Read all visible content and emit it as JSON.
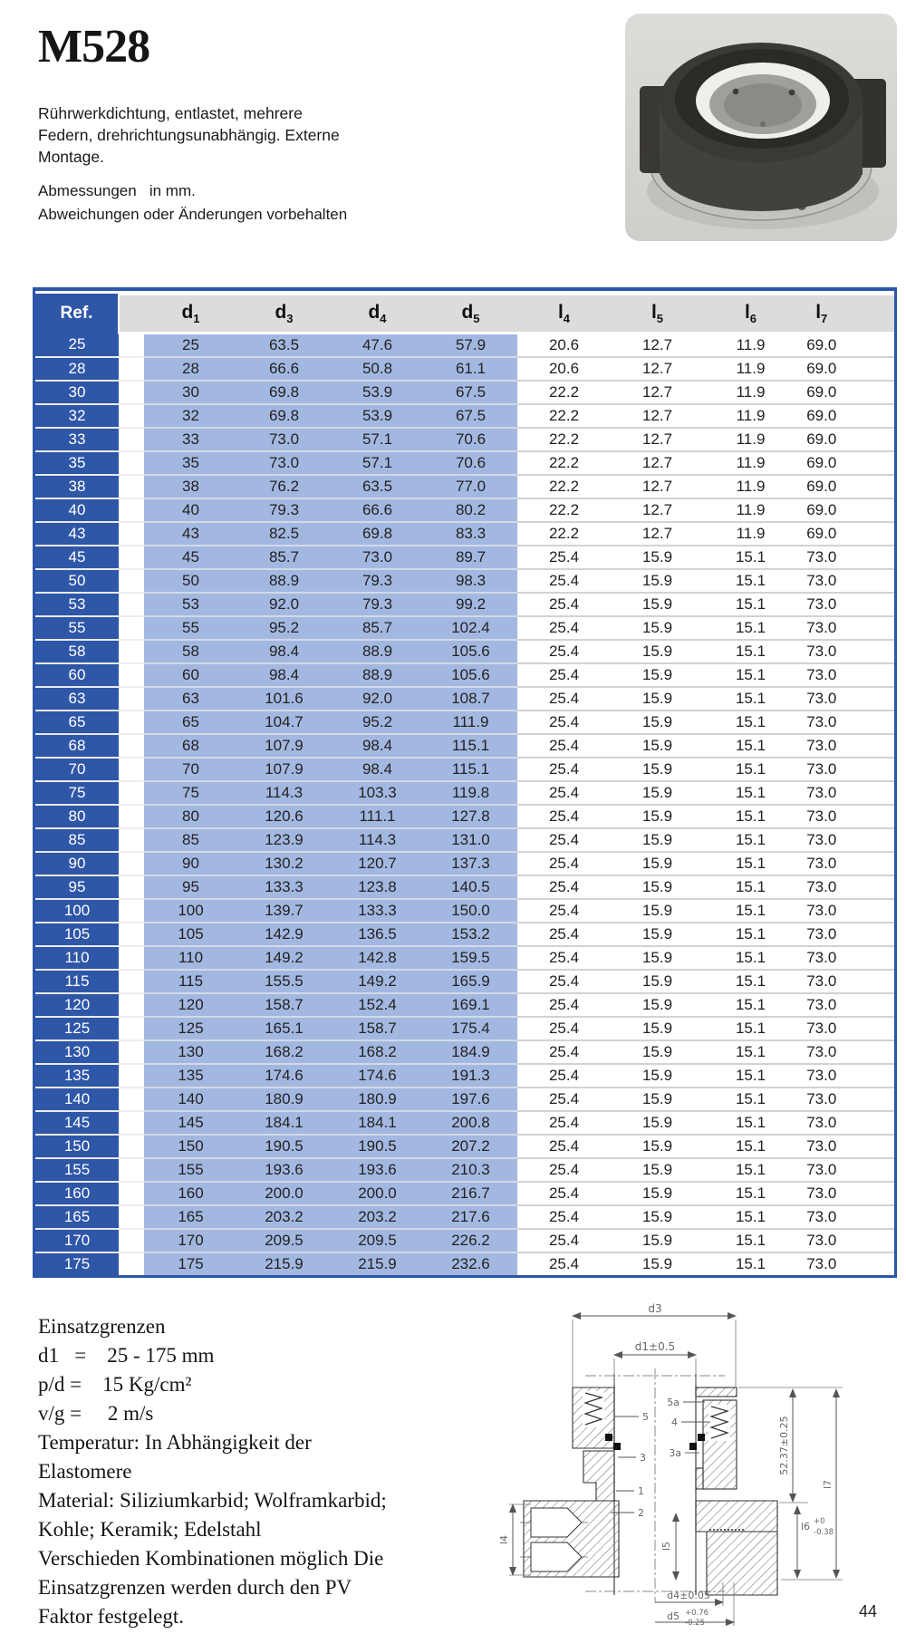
{
  "page": {
    "title": "M528",
    "description_lines": [
      "Rührwerkdichtung, entlastet, mehrere",
      "Federn, drehrichtungsunabhängig. Externe",
      "Montage."
    ],
    "note_line1": "Abmessungen   in mm.",
    "note_line2": "Abweichungen oder Änderungen vorbehalten",
    "page_number": "44"
  },
  "colors": {
    "table_border_blue": "#2b56a8",
    "ref_column_blue": "#2f57a8",
    "data_column_blue": "#a3b8e1",
    "header_gray": "#dcdcdc"
  },
  "table": {
    "ref_header": "Ref.",
    "columns": [
      {
        "base": "d",
        "sub": "1"
      },
      {
        "base": "d",
        "sub": "3"
      },
      {
        "base": "d",
        "sub": "4"
      },
      {
        "base": "d",
        "sub": "5"
      },
      {
        "base": "l",
        "sub": "4"
      },
      {
        "base": "l",
        "sub": "5"
      },
      {
        "base": "l",
        "sub": "6"
      },
      {
        "base": "l",
        "sub": "7"
      }
    ],
    "rows": [
      {
        "ref": "25",
        "values": [
          "25",
          "63.5",
          "47.6",
          "57.9",
          "20.6",
          "12.7",
          "11.9",
          "69.0"
        ]
      },
      {
        "ref": "28",
        "values": [
          "28",
          "66.6",
          "50.8",
          "61.1",
          "20.6",
          "12.7",
          "11.9",
          "69.0"
        ]
      },
      {
        "ref": "30",
        "values": [
          "30",
          "69.8",
          "53.9",
          "67.5",
          "22.2",
          "12.7",
          "11.9",
          "69.0"
        ]
      },
      {
        "ref": "32",
        "values": [
          "32",
          "69.8",
          "53.9",
          "67.5",
          "22.2",
          "12.7",
          "11.9",
          "69.0"
        ]
      },
      {
        "ref": "33",
        "values": [
          "33",
          "73.0",
          "57.1",
          "70.6",
          "22.2",
          "12.7",
          "11.9",
          "69.0"
        ]
      },
      {
        "ref": "35",
        "values": [
          "35",
          "73.0",
          "57.1",
          "70.6",
          "22.2",
          "12.7",
          "11.9",
          "69.0"
        ]
      },
      {
        "ref": "38",
        "values": [
          "38",
          "76.2",
          "63.5",
          "77.0",
          "22.2",
          "12.7",
          "11.9",
          "69.0"
        ]
      },
      {
        "ref": "40",
        "values": [
          "40",
          "79.3",
          "66.6",
          "80.2",
          "22.2",
          "12.7",
          "11.9",
          "69.0"
        ]
      },
      {
        "ref": "43",
        "values": [
          "43",
          "82.5",
          "69.8",
          "83.3",
          "22.2",
          "12.7",
          "11.9",
          "69.0"
        ]
      },
      {
        "ref": "45",
        "values": [
          "45",
          "85.7",
          "73.0",
          "89.7",
          "25.4",
          "15.9",
          "15.1",
          "73.0"
        ]
      },
      {
        "ref": "50",
        "values": [
          "50",
          "88.9",
          "79.3",
          "98.3",
          "25.4",
          "15.9",
          "15.1",
          "73.0"
        ]
      },
      {
        "ref": "53",
        "values": [
          "53",
          "92.0",
          "79.3",
          "99.2",
          "25.4",
          "15.9",
          "15.1",
          "73.0"
        ]
      },
      {
        "ref": "55",
        "values": [
          "55",
          "95.2",
          "85.7",
          "102.4",
          "25.4",
          "15.9",
          "15.1",
          "73.0"
        ]
      },
      {
        "ref": "58",
        "values": [
          "58",
          "98.4",
          "88.9",
          "105.6",
          "25.4",
          "15.9",
          "15.1",
          "73.0"
        ]
      },
      {
        "ref": "60",
        "values": [
          "60",
          "98.4",
          "88.9",
          "105.6",
          "25.4",
          "15.9",
          "15.1",
          "73.0"
        ]
      },
      {
        "ref": "63",
        "values": [
          "63",
          "101.6",
          "92.0",
          "108.7",
          "25.4",
          "15.9",
          "15.1",
          "73.0"
        ]
      },
      {
        "ref": "65",
        "values": [
          "65",
          "104.7",
          "95.2",
          "111.9",
          "25.4",
          "15.9",
          "15.1",
          "73.0"
        ]
      },
      {
        "ref": "68",
        "values": [
          "68",
          "107.9",
          "98.4",
          "115.1",
          "25.4",
          "15.9",
          "15.1",
          "73.0"
        ]
      },
      {
        "ref": "70",
        "values": [
          "70",
          "107.9",
          "98.4",
          "115.1",
          "25.4",
          "15.9",
          "15.1",
          "73.0"
        ]
      },
      {
        "ref": "75",
        "values": [
          "75",
          "114.3",
          "103.3",
          "119.8",
          "25.4",
          "15.9",
          "15.1",
          "73.0"
        ]
      },
      {
        "ref": "80",
        "values": [
          "80",
          "120.6",
          "111.1",
          "127.8",
          "25.4",
          "15.9",
          "15.1",
          "73.0"
        ]
      },
      {
        "ref": "85",
        "values": [
          "85",
          "123.9",
          "114.3",
          "131.0",
          "25.4",
          "15.9",
          "15.1",
          "73.0"
        ]
      },
      {
        "ref": "90",
        "values": [
          "90",
          "130.2",
          "120.7",
          "137.3",
          "25.4",
          "15.9",
          "15.1",
          "73.0"
        ]
      },
      {
        "ref": "95",
        "values": [
          "95",
          "133.3",
          "123.8",
          "140.5",
          "25.4",
          "15.9",
          "15.1",
          "73.0"
        ]
      },
      {
        "ref": "100",
        "values": [
          "100",
          "139.7",
          "133.3",
          "150.0",
          "25.4",
          "15.9",
          "15.1",
          "73.0"
        ]
      },
      {
        "ref": "105",
        "values": [
          "105",
          "142.9",
          "136.5",
          "153.2",
          "25.4",
          "15.9",
          "15.1",
          "73.0"
        ]
      },
      {
        "ref": "110",
        "values": [
          "110",
          "149.2",
          "142.8",
          "159.5",
          "25.4",
          "15.9",
          "15.1",
          "73.0"
        ]
      },
      {
        "ref": "115",
        "values": [
          "115",
          "155.5",
          "149.2",
          "165.9",
          "25.4",
          "15.9",
          "15.1",
          "73.0"
        ]
      },
      {
        "ref": "120",
        "values": [
          "120",
          "158.7",
          "152.4",
          "169.1",
          "25.4",
          "15.9",
          "15.1",
          "73.0"
        ]
      },
      {
        "ref": "125",
        "values": [
          "125",
          "165.1",
          "158.7",
          "175.4",
          "25.4",
          "15.9",
          "15.1",
          "73.0"
        ]
      },
      {
        "ref": "130",
        "values": [
          "130",
          "168.2",
          "168.2",
          "184.9",
          "25.4",
          "15.9",
          "15.1",
          "73.0"
        ]
      },
      {
        "ref": "135",
        "values": [
          "135",
          "174.6",
          "174.6",
          "191.3",
          "25.4",
          "15.9",
          "15.1",
          "73.0"
        ]
      },
      {
        "ref": "140",
        "values": [
          "140",
          "180.9",
          "180.9",
          "197.6",
          "25.4",
          "15.9",
          "15.1",
          "73.0"
        ]
      },
      {
        "ref": "145",
        "values": [
          "145",
          "184.1",
          "184.1",
          "200.8",
          "25.4",
          "15.9",
          "15.1",
          "73.0"
        ]
      },
      {
        "ref": "150",
        "values": [
          "150",
          "190.5",
          "190.5",
          "207.2",
          "25.4",
          "15.9",
          "15.1",
          "73.0"
        ]
      },
      {
        "ref": "155",
        "values": [
          "155",
          "193.6",
          "193.6",
          "210.3",
          "25.4",
          "15.9",
          "15.1",
          "73.0"
        ]
      },
      {
        "ref": "160",
        "values": [
          "160",
          "200.0",
          "200.0",
          "216.7",
          "25.4",
          "15.9",
          "15.1",
          "73.0"
        ]
      },
      {
        "ref": "165",
        "values": [
          "165",
          "203.2",
          "203.2",
          "217.6",
          "25.4",
          "15.9",
          "15.1",
          "73.0"
        ]
      },
      {
        "ref": "170",
        "values": [
          "170",
          "209.5",
          "209.5",
          "226.2",
          "25.4",
          "15.9",
          "15.1",
          "73.0"
        ]
      },
      {
        "ref": "175",
        "values": [
          "175",
          "215.9",
          "215.9",
          "232.6",
          "25.4",
          "15.9",
          "15.1",
          "73.0"
        ]
      }
    ]
  },
  "specs": {
    "lines": [
      "Einsatzgrenzen",
      "d1   =    25 - 175 mm",
      "p/d =    15 Kg/cm²",
      "v/g =     2 m/s",
      "Temperatur: In Abhängigkeit der",
      "Elastomere",
      "Material: Siliziumkarbid; Wolframkarbid;",
      "Kohle; Keramik; Edelstahl",
      "Verschieden Kombinationen möglich Die",
      "Einsatzgrenzen werden durch den PV",
      "Faktor festgelegt."
    ]
  },
  "drawing": {
    "labels": {
      "d3": "d3",
      "d1": "d1±0.5",
      "l4": "l4",
      "l5": "l5",
      "dim_52": "52.37±0.25",
      "l7": "l7",
      "l6": "l6",
      "l6_tol_top": "+0",
      "l6_tol_bottom": "-0.38",
      "d4": "d4±0.05",
      "d5": "d5",
      "d5_tol_top": "+0.76",
      "d5_tol_bottom": "-0.25",
      "part_5": "5",
      "part_3": "3",
      "part_1": "1",
      "part_2": "2",
      "part_5a": "5a",
      "part_4": "4",
      "part_3a": "3a"
    }
  }
}
